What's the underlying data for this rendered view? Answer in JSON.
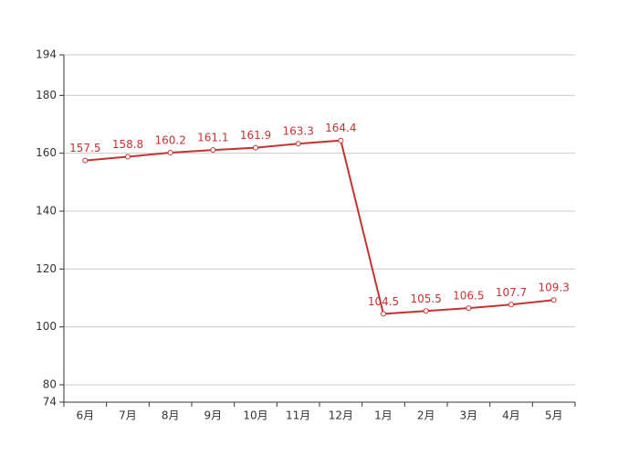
{
  "chart_data": {
    "type": "line",
    "categories": [
      "6月",
      "7月",
      "8月",
      "9月",
      "10月",
      "11月",
      "12月",
      "1月",
      "2月",
      "3月",
      "4月",
      "5月"
    ],
    "values": [
      157.5,
      158.8,
      160.2,
      161.1,
      161.9,
      163.3,
      164.4,
      104.5,
      105.5,
      106.5,
      107.7,
      109.3
    ],
    "color": "#c23531",
    "ylim": [
      74,
      194
    ],
    "yticks": [
      74,
      80,
      100,
      120,
      140,
      160,
      180,
      194
    ],
    "grid": true
  }
}
